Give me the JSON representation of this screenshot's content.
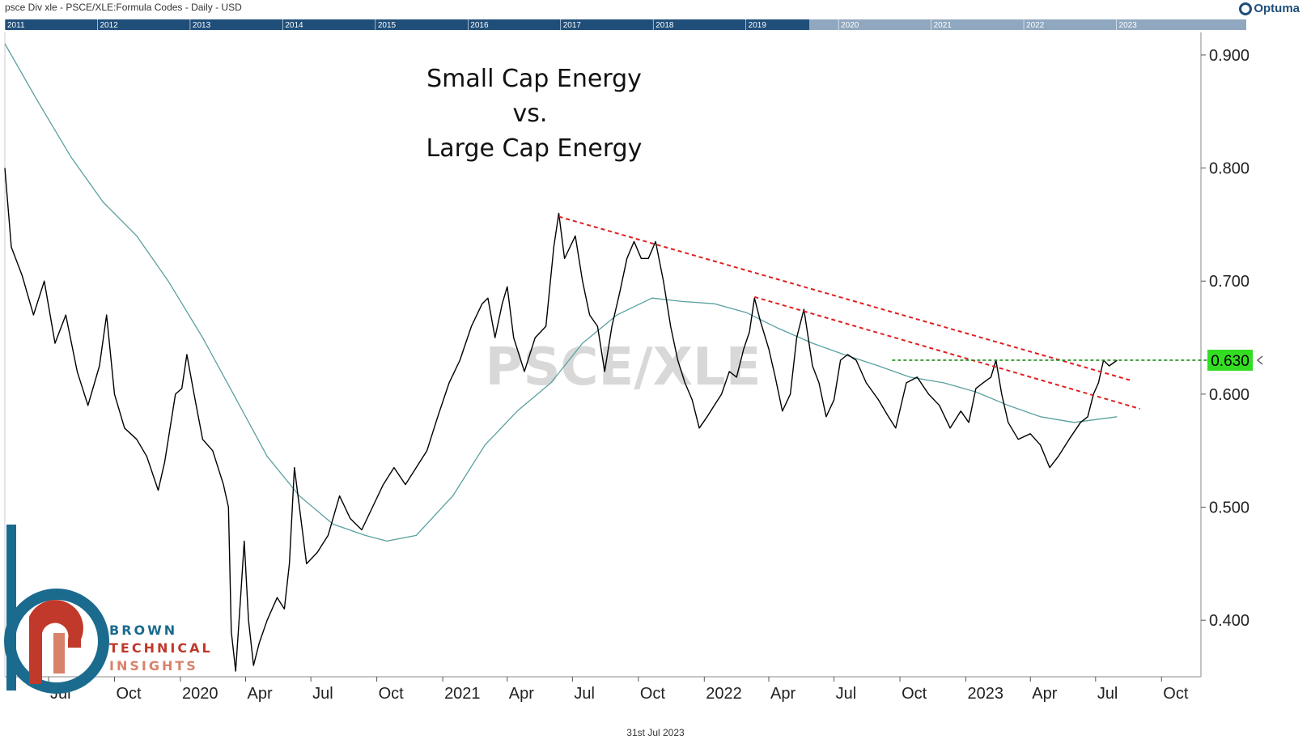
{
  "header": {
    "title": "psce Div xle -  PSCE/XLE:Formula Codes - Daily - USD",
    "brand": "Optuma"
  },
  "navigator": {
    "years": [
      "2011",
      "2012",
      "2013",
      "2014",
      "2015",
      "2016",
      "2017",
      "2018",
      "2019",
      "2020",
      "2021",
      "2022",
      "2023"
    ]
  },
  "watermark": "PSCE/XLE",
  "footer": {
    "date": "31st Jul 2023"
  },
  "logo": {
    "line1": "BROWN",
    "line2": "TECHNICAL",
    "line3": "INSIGHTS"
  },
  "colors": {
    "price": "#000000",
    "ma": "#5aa0a0",
    "trendline": "#e02020",
    "level": "#1a8a1a",
    "badge": "#33dd22",
    "navigator": "#1f4e79"
  },
  "chart_data": {
    "type": "line",
    "title": [
      "Small Cap Energy",
      "vs.",
      "Large Cap Energy"
    ],
    "ylim": [
      0.35,
      0.92
    ],
    "yticks": [
      0.4,
      0.5,
      0.6,
      0.7,
      0.8,
      0.9
    ],
    "ytick_labels": [
      "0.400",
      "0.500",
      "0.600",
      "0.700",
      "0.800",
      "0.900"
    ],
    "xlim": [
      "2019-05-01",
      "2023-11-25"
    ],
    "xticks": [
      {
        "date": "2019-07-01",
        "label": "Jul"
      },
      {
        "date": "2019-10-01",
        "label": "Oct"
      },
      {
        "date": "2020-01-01",
        "label": "2020"
      },
      {
        "date": "2020-04-01",
        "label": "Apr"
      },
      {
        "date": "2020-07-01",
        "label": "Jul"
      },
      {
        "date": "2020-10-01",
        "label": "Oct"
      },
      {
        "date": "2021-01-01",
        "label": "2021"
      },
      {
        "date": "2021-04-01",
        "label": "Apr"
      },
      {
        "date": "2021-07-01",
        "label": "Jul"
      },
      {
        "date": "2021-10-01",
        "label": "Oct"
      },
      {
        "date": "2022-01-01",
        "label": "2022"
      },
      {
        "date": "2022-04-01",
        "label": "Apr"
      },
      {
        "date": "2022-07-01",
        "label": "Jul"
      },
      {
        "date": "2022-10-01",
        "label": "Oct"
      },
      {
        "date": "2023-01-01",
        "label": "2023"
      },
      {
        "date": "2023-04-01",
        "label": "Apr"
      },
      {
        "date": "2023-07-01",
        "label": "Jul"
      },
      {
        "date": "2023-10-01",
        "label": "Oct"
      }
    ],
    "series": [
      {
        "role": "price",
        "points": [
          [
            "2019-05-01",
            0.8
          ],
          [
            "2019-05-10",
            0.73
          ],
          [
            "2019-05-25",
            0.705
          ],
          [
            "2019-06-10",
            0.67
          ],
          [
            "2019-06-25",
            0.7
          ],
          [
            "2019-07-10",
            0.645
          ],
          [
            "2019-07-25",
            0.67
          ],
          [
            "2019-08-10",
            0.62
          ],
          [
            "2019-08-25",
            0.59
          ],
          [
            "2019-09-10",
            0.625
          ],
          [
            "2019-09-20",
            0.67
          ],
          [
            "2019-10-01",
            0.6
          ],
          [
            "2019-10-15",
            0.57
          ],
          [
            "2019-11-01",
            0.56
          ],
          [
            "2019-11-15",
            0.545
          ],
          [
            "2019-12-01",
            0.515
          ],
          [
            "2019-12-10",
            0.54
          ],
          [
            "2019-12-25",
            0.6
          ],
          [
            "2020-01-03",
            0.605
          ],
          [
            "2020-01-10",
            0.635
          ],
          [
            "2020-01-20",
            0.6
          ],
          [
            "2020-02-01",
            0.56
          ],
          [
            "2020-02-15",
            0.55
          ],
          [
            "2020-03-01",
            0.52
          ],
          [
            "2020-03-08",
            0.5
          ],
          [
            "2020-03-12",
            0.39
          ],
          [
            "2020-03-18",
            0.355
          ],
          [
            "2020-03-25",
            0.42
          ],
          [
            "2020-03-30",
            0.47
          ],
          [
            "2020-04-05",
            0.4
          ],
          [
            "2020-04-12",
            0.36
          ],
          [
            "2020-04-20",
            0.38
          ],
          [
            "2020-05-01",
            0.4
          ],
          [
            "2020-05-15",
            0.42
          ],
          [
            "2020-05-25",
            0.41
          ],
          [
            "2020-06-01",
            0.45
          ],
          [
            "2020-06-08",
            0.535
          ],
          [
            "2020-06-15",
            0.5
          ],
          [
            "2020-06-25",
            0.45
          ],
          [
            "2020-07-10",
            0.46
          ],
          [
            "2020-07-25",
            0.475
          ],
          [
            "2020-08-10",
            0.51
          ],
          [
            "2020-08-25",
            0.49
          ],
          [
            "2020-09-10",
            0.48
          ],
          [
            "2020-09-25",
            0.5
          ],
          [
            "2020-10-10",
            0.52
          ],
          [
            "2020-10-25",
            0.535
          ],
          [
            "2020-11-10",
            0.52
          ],
          [
            "2020-11-25",
            0.535
          ],
          [
            "2020-12-10",
            0.55
          ],
          [
            "2020-12-25",
            0.58
          ],
          [
            "2021-01-10",
            0.61
          ],
          [
            "2021-01-25",
            0.63
          ],
          [
            "2021-02-10",
            0.66
          ],
          [
            "2021-02-25",
            0.68
          ],
          [
            "2021-03-05",
            0.685
          ],
          [
            "2021-03-15",
            0.65
          ],
          [
            "2021-03-25",
            0.68
          ],
          [
            "2021-04-01",
            0.695
          ],
          [
            "2021-04-10",
            0.65
          ],
          [
            "2021-04-25",
            0.62
          ],
          [
            "2021-05-10",
            0.65
          ],
          [
            "2021-05-25",
            0.66
          ],
          [
            "2021-06-05",
            0.73
          ],
          [
            "2021-06-12",
            0.76
          ],
          [
            "2021-06-20",
            0.72
          ],
          [
            "2021-07-05",
            0.74
          ],
          [
            "2021-07-15",
            0.7
          ],
          [
            "2021-07-25",
            0.67
          ],
          [
            "2021-08-05",
            0.66
          ],
          [
            "2021-08-15",
            0.62
          ],
          [
            "2021-08-25",
            0.66
          ],
          [
            "2021-09-05",
            0.69
          ],
          [
            "2021-09-15",
            0.72
          ],
          [
            "2021-09-25",
            0.735
          ],
          [
            "2021-10-05",
            0.72
          ],
          [
            "2021-10-15",
            0.72
          ],
          [
            "2021-10-25",
            0.735
          ],
          [
            "2021-11-05",
            0.7
          ],
          [
            "2021-11-15",
            0.66
          ],
          [
            "2021-11-25",
            0.63
          ],
          [
            "2021-12-05",
            0.61
          ],
          [
            "2021-12-15",
            0.595
          ],
          [
            "2021-12-25",
            0.57
          ],
          [
            "2022-01-05",
            0.58
          ],
          [
            "2022-01-15",
            0.59
          ],
          [
            "2022-01-25",
            0.6
          ],
          [
            "2022-02-05",
            0.62
          ],
          [
            "2022-02-15",
            0.615
          ],
          [
            "2022-02-25",
            0.64
          ],
          [
            "2022-03-05",
            0.655
          ],
          [
            "2022-03-12",
            0.685
          ],
          [
            "2022-03-20",
            0.665
          ],
          [
            "2022-04-01",
            0.64
          ],
          [
            "2022-04-10",
            0.615
          ],
          [
            "2022-04-20",
            0.585
          ],
          [
            "2022-05-01",
            0.6
          ],
          [
            "2022-05-10",
            0.65
          ],
          [
            "2022-05-20",
            0.675
          ],
          [
            "2022-06-01",
            0.625
          ],
          [
            "2022-06-10",
            0.61
          ],
          [
            "2022-06-20",
            0.58
          ],
          [
            "2022-07-01",
            0.595
          ],
          [
            "2022-07-10",
            0.63
          ],
          [
            "2022-07-20",
            0.635
          ],
          [
            "2022-08-01",
            0.63
          ],
          [
            "2022-08-15",
            0.61
          ],
          [
            "2022-09-01",
            0.595
          ],
          [
            "2022-09-15",
            0.58
          ],
          [
            "2022-09-25",
            0.57
          ],
          [
            "2022-10-10",
            0.61
          ],
          [
            "2022-10-25",
            0.615
          ],
          [
            "2022-11-10",
            0.6
          ],
          [
            "2022-11-25",
            0.59
          ],
          [
            "2022-12-10",
            0.57
          ],
          [
            "2022-12-25",
            0.585
          ],
          [
            "2023-01-05",
            0.575
          ],
          [
            "2023-01-15",
            0.605
          ],
          [
            "2023-01-25",
            0.61
          ],
          [
            "2023-02-05",
            0.615
          ],
          [
            "2023-02-12",
            0.63
          ],
          [
            "2023-02-20",
            0.6
          ],
          [
            "2023-03-01",
            0.575
          ],
          [
            "2023-03-15",
            0.56
          ],
          [
            "2023-04-01",
            0.565
          ],
          [
            "2023-04-15",
            0.555
          ],
          [
            "2023-04-28",
            0.535
          ],
          [
            "2023-05-10",
            0.545
          ],
          [
            "2023-05-25",
            0.56
          ],
          [
            "2023-06-10",
            0.575
          ],
          [
            "2023-06-20",
            0.58
          ],
          [
            "2023-06-28",
            0.6
          ],
          [
            "2023-07-05",
            0.61
          ],
          [
            "2023-07-12",
            0.63
          ],
          [
            "2023-07-20",
            0.625
          ],
          [
            "2023-07-31",
            0.63
          ]
        ]
      },
      {
        "role": "moving_average",
        "points": [
          [
            "2019-05-01",
            0.91
          ],
          [
            "2019-06-15",
            0.86
          ],
          [
            "2019-08-01",
            0.81
          ],
          [
            "2019-09-15",
            0.77
          ],
          [
            "2019-11-01",
            0.74
          ],
          [
            "2019-12-15",
            0.7
          ],
          [
            "2020-02-01",
            0.65
          ],
          [
            "2020-03-15",
            0.6
          ],
          [
            "2020-05-01",
            0.545
          ],
          [
            "2020-06-15",
            0.51
          ],
          [
            "2020-08-01",
            0.485
          ],
          [
            "2020-09-15",
            0.475
          ],
          [
            "2020-10-15",
            0.47
          ],
          [
            "2020-11-25",
            0.475
          ],
          [
            "2021-01-15",
            0.51
          ],
          [
            "2021-03-01",
            0.555
          ],
          [
            "2021-04-15",
            0.585
          ],
          [
            "2021-06-01",
            0.61
          ],
          [
            "2021-07-15",
            0.645
          ],
          [
            "2021-09-01",
            0.67
          ],
          [
            "2021-10-20",
            0.685
          ],
          [
            "2021-12-01",
            0.682
          ],
          [
            "2022-01-15",
            0.68
          ],
          [
            "2022-03-01",
            0.672
          ],
          [
            "2022-04-15",
            0.658
          ],
          [
            "2022-06-01",
            0.645
          ],
          [
            "2022-07-15",
            0.635
          ],
          [
            "2022-09-01",
            0.625
          ],
          [
            "2022-10-15",
            0.615
          ],
          [
            "2022-12-01",
            0.61
          ],
          [
            "2023-01-15",
            0.602
          ],
          [
            "2023-03-01",
            0.59
          ],
          [
            "2023-04-15",
            0.58
          ],
          [
            "2023-06-01",
            0.575
          ],
          [
            "2023-07-31",
            0.58
          ]
        ]
      }
    ],
    "trendlines": [
      {
        "from": [
          "2021-06-12",
          0.757
        ],
        "to": [
          "2023-08-20",
          0.612
        ]
      },
      {
        "from": [
          "2022-03-12",
          0.686
        ],
        "to": [
          "2023-09-01",
          0.587
        ]
      }
    ],
    "level": {
      "value": 0.63,
      "from": "2022-09-20",
      "label": "0.630"
    }
  }
}
